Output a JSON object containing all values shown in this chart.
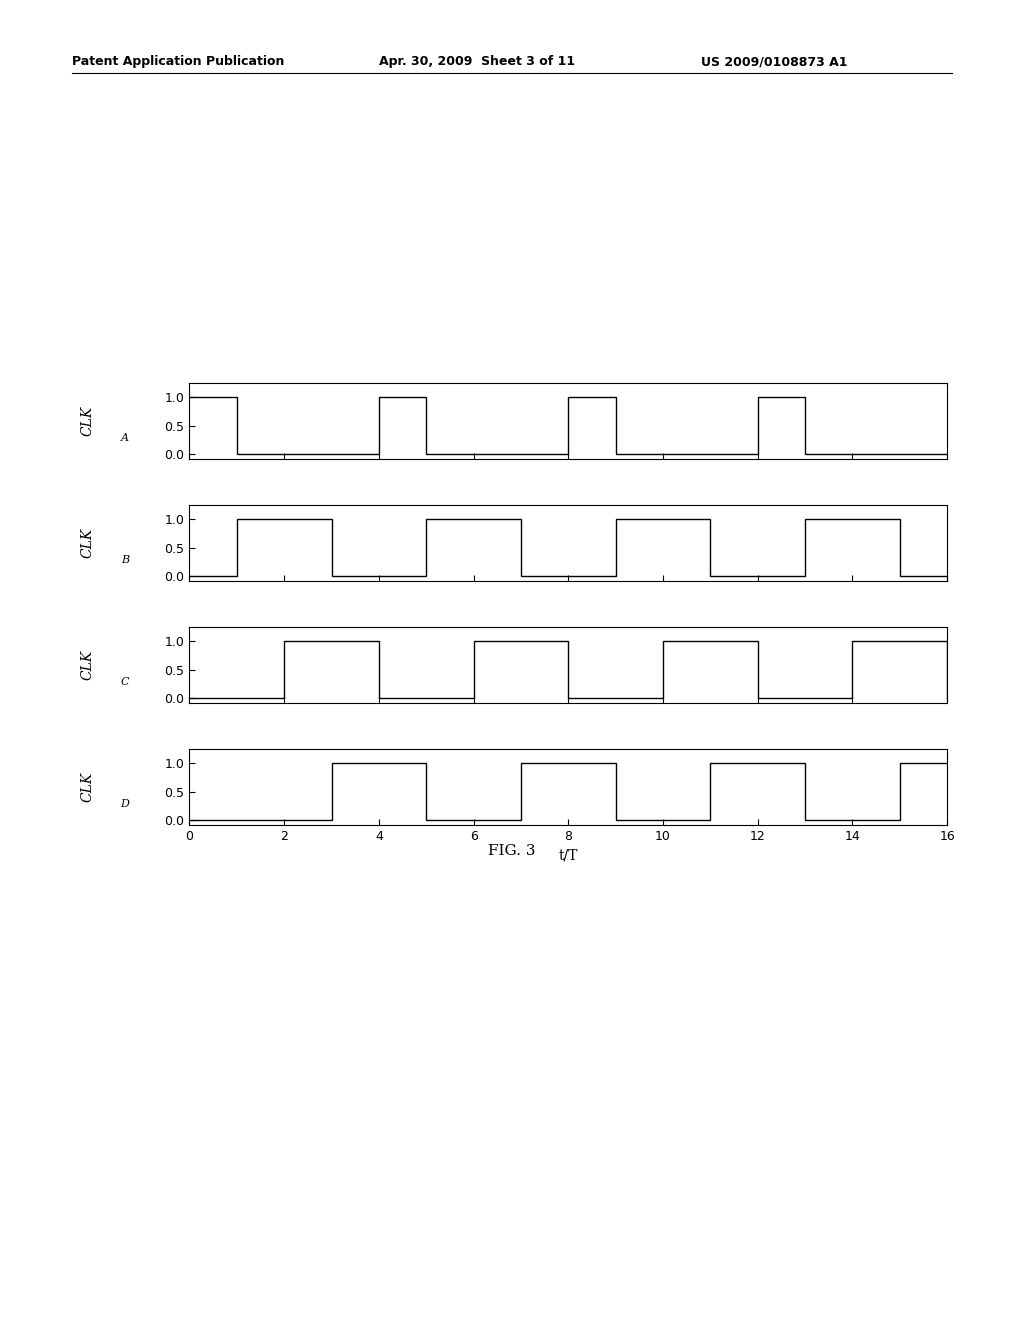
{
  "header_left": "Patent Application Publication",
  "header_center": "Apr. 30, 2009  Sheet 3 of 11",
  "header_right": "US 2009/0108873 A1",
  "caption": "FIG. 3",
  "xlabel": "t/T",
  "xlim": [
    0,
    16
  ],
  "ylim": [
    -0.08,
    1.25
  ],
  "yticks": [
    0,
    0.5,
    1
  ],
  "xticks": [
    0,
    2,
    4,
    6,
    8,
    10,
    12,
    14,
    16
  ],
  "signal_labels": [
    "A",
    "B",
    "C",
    "D"
  ],
  "signal_highs": [
    [
      [
        0,
        1
      ],
      [
        4,
        5
      ],
      [
        8,
        9
      ],
      [
        12,
        13
      ]
    ],
    [
      [
        1,
        3
      ],
      [
        5,
        7
      ],
      [
        9,
        11
      ],
      [
        13,
        15
      ]
    ],
    [
      [
        2,
        4
      ],
      [
        6,
        8
      ],
      [
        10,
        12
      ],
      [
        14,
        16
      ]
    ],
    [
      [
        3,
        5
      ],
      [
        7,
        9
      ],
      [
        11,
        13
      ],
      [
        15,
        17
      ]
    ]
  ],
  "background_color": "#ffffff",
  "line_color": "#000000",
  "header_fontsize": 9,
  "tick_fontsize": 9,
  "label_fontsize": 10,
  "caption_fontsize": 11
}
